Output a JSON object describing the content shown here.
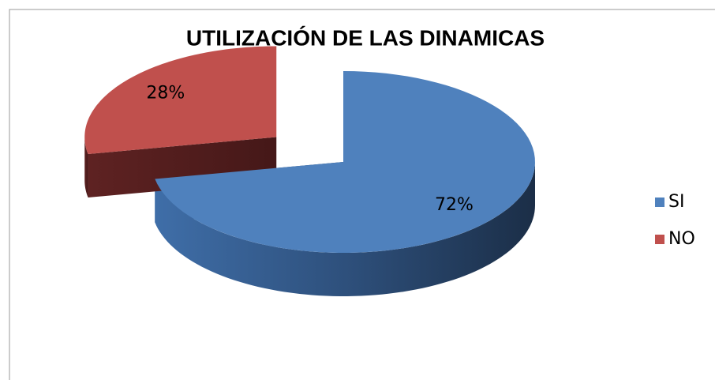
{
  "chart_data": {
    "type": "pie",
    "title": "UTILIZACIÓN DE LAS DINAMICAS",
    "categories": [
      "SI",
      "NO"
    ],
    "values": [
      72,
      28
    ],
    "value_labels": [
      "72%",
      "28%"
    ],
    "colors": [
      "#4f81bd",
      "#c0504d"
    ],
    "legend": "right"
  }
}
